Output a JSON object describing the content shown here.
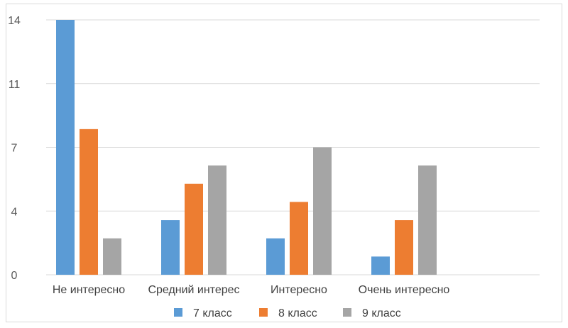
{
  "chart_data": {
    "type": "bar",
    "title": "",
    "xlabel": "",
    "ylabel": "",
    "categories": [
      "Не интересно",
      "Средний интерес",
      "Интересно",
      "Очень интересно"
    ],
    "yticks": [
      {
        "value": 0,
        "label": "0"
      },
      {
        "value": 3.5,
        "label": "4"
      },
      {
        "value": 7,
        "label": "7"
      },
      {
        "value": 10.5,
        "label": "11"
      },
      {
        "value": 14,
        "label": "14"
      }
    ],
    "ylim": [
      0,
      14
    ],
    "grid": true,
    "legend_position": "bottom",
    "series": [
      {
        "name": "7 класс",
        "color": "#5B9BD5",
        "values": [
          14,
          3,
          2,
          1
        ]
      },
      {
        "name": "8 класс",
        "color": "#ED7D31",
        "values": [
          8,
          5,
          4,
          3
        ]
      },
      {
        "name": "9 класс",
        "color": "#A5A5A5",
        "values": [
          2,
          6,
          7,
          6
        ]
      }
    ]
  }
}
